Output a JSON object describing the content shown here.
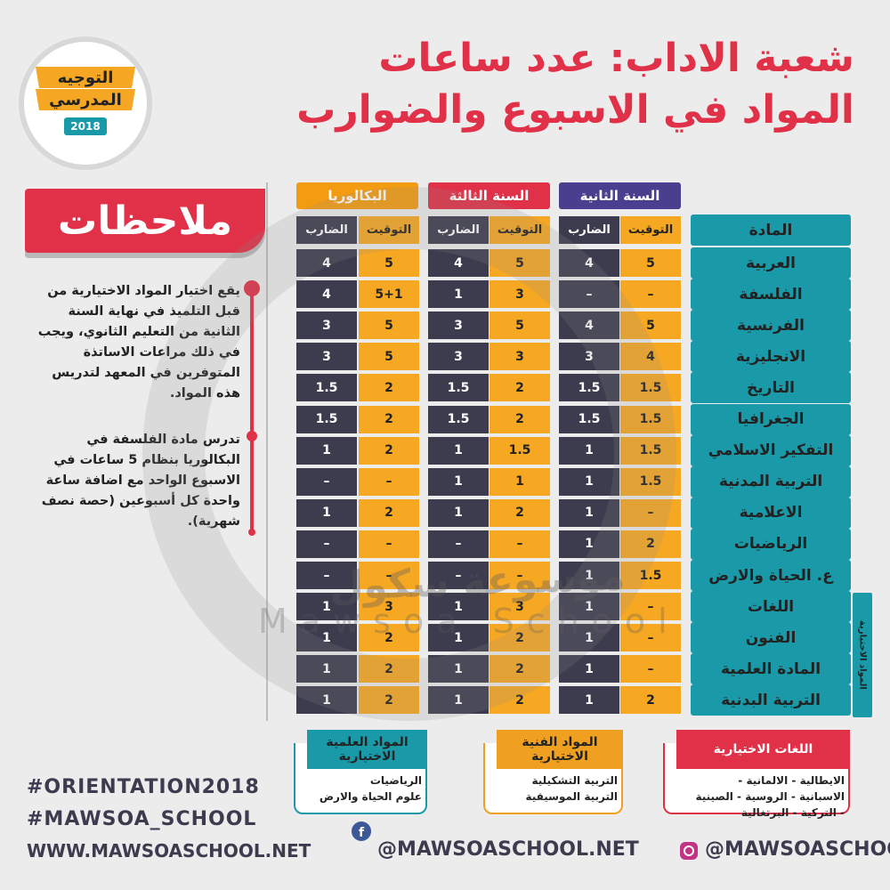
{
  "header": {
    "title_line1": "شعبة الاداب: عدد ساعات",
    "title_line2": "المواد في الاسبوع والضوارب"
  },
  "logo": {
    "line1": "التوجيه",
    "line2": "المدرسي",
    "year": "2018"
  },
  "notes": {
    "title": "ملاحظات",
    "paragraphs": [
      "يقع اختيار المواد الاختيارية من قبل التلميذ في نهاية السنة الثانية من التعليم الثانوي، ويجب في ذلك مراعات الاساتذة المتوفرين في المعهد لتدريس هذه المواد.",
      "تدرس مادة الفلسفة في البكالوريا بنظام 5 ساعات في الاسبوع الواحد مع اضافة ساعة واحدة كل أسبوعين (حصة نصف شهرية)."
    ]
  },
  "table": {
    "subject_header": "المادة",
    "groups": [
      {
        "name": "السنة الثانية",
        "columns": [
          "التوقيت",
          "الضارب"
        ]
      },
      {
        "name": "السنة الثالثة",
        "columns": [
          "التوقيت",
          "الضارب"
        ]
      },
      {
        "name": "البكالوريا",
        "columns": [
          "التوقيت",
          "الضارب"
        ]
      }
    ],
    "rows": [
      {
        "subject": "العربية",
        "cells": [
          "5",
          "4",
          "5",
          "4",
          "5",
          "4"
        ]
      },
      {
        "subject": "الفلسفة",
        "cells": [
          "–",
          "–",
          "3",
          "1",
          "5+1",
          "4"
        ]
      },
      {
        "subject": "الفرنسية",
        "cells": [
          "5",
          "4",
          "5",
          "3",
          "5",
          "3"
        ]
      },
      {
        "subject": "الانجليزية",
        "cells": [
          "4",
          "3",
          "3",
          "3",
          "5",
          "3"
        ]
      },
      {
        "subject": "التاريخ",
        "cells": [
          "1.5",
          "1.5",
          "2",
          "1.5",
          "2",
          "1.5"
        ]
      },
      {
        "subject": "الجغرافيا",
        "cells": [
          "1.5",
          "1.5",
          "2",
          "1.5",
          "2",
          "1.5"
        ]
      },
      {
        "subject": "التفكير الاسلامي",
        "cells": [
          "1.5",
          "1",
          "1.5",
          "1",
          "2",
          "1"
        ]
      },
      {
        "subject": "التربية المدنية",
        "cells": [
          "1.5",
          "1",
          "1",
          "1",
          "–",
          "–"
        ]
      },
      {
        "subject": "الاعلامية",
        "cells": [
          "–",
          "1",
          "2",
          "1",
          "2",
          "1"
        ]
      },
      {
        "subject": "الرياضيات",
        "cells": [
          "2",
          "1",
          "–",
          "–",
          "–",
          "–"
        ]
      },
      {
        "subject": "ع. الحياة والارض",
        "cells": [
          "1.5",
          "1",
          "–",
          "–",
          "–",
          "–"
        ]
      },
      {
        "subject": "اللغات",
        "cells": [
          "–",
          "1",
          "3",
          "1",
          "3",
          "1"
        ]
      },
      {
        "subject": "الفنون",
        "cells": [
          "–",
          "1",
          "2",
          "1",
          "2",
          "1"
        ]
      },
      {
        "subject": "المادة العلمية",
        "cells": [
          "–",
          "1",
          "2",
          "1",
          "2",
          "1"
        ]
      },
      {
        "subject": "التربية البدنية",
        "cells": [
          "2",
          "1",
          "2",
          "1",
          "2",
          "1"
        ]
      }
    ],
    "optional_label": "المواد الاختيارية"
  },
  "boxes": [
    {
      "title": "اللغات الاختيارية",
      "items": [
        "الايطالية - الالمانية -",
        "الاسبانية - الروسية - الصينية",
        "- التركية - البرتغالية"
      ]
    },
    {
      "title": "المواد الفنية الاختيارية",
      "items": [
        "التربية التشكيلية",
        "التربية الموسيقية"
      ]
    },
    {
      "title": "المواد العلمية الاختيارية",
      "items": [
        "الرياضيات",
        "علوم الحياة والارض"
      ]
    }
  ],
  "watermark": {
    "arabic": "موسوعة سكول",
    "latin": "Mawsoa School"
  },
  "footer": {
    "hashtags": [
      "#ORIENTATION2018",
      "#MAWSOA_SCHOOL"
    ],
    "website": "WWW.MAWSOASCHOOL.NET",
    "facebook": "@MAWSOASCHOOL.NET",
    "instagram": "@MAWSOASCHOOL"
  }
}
